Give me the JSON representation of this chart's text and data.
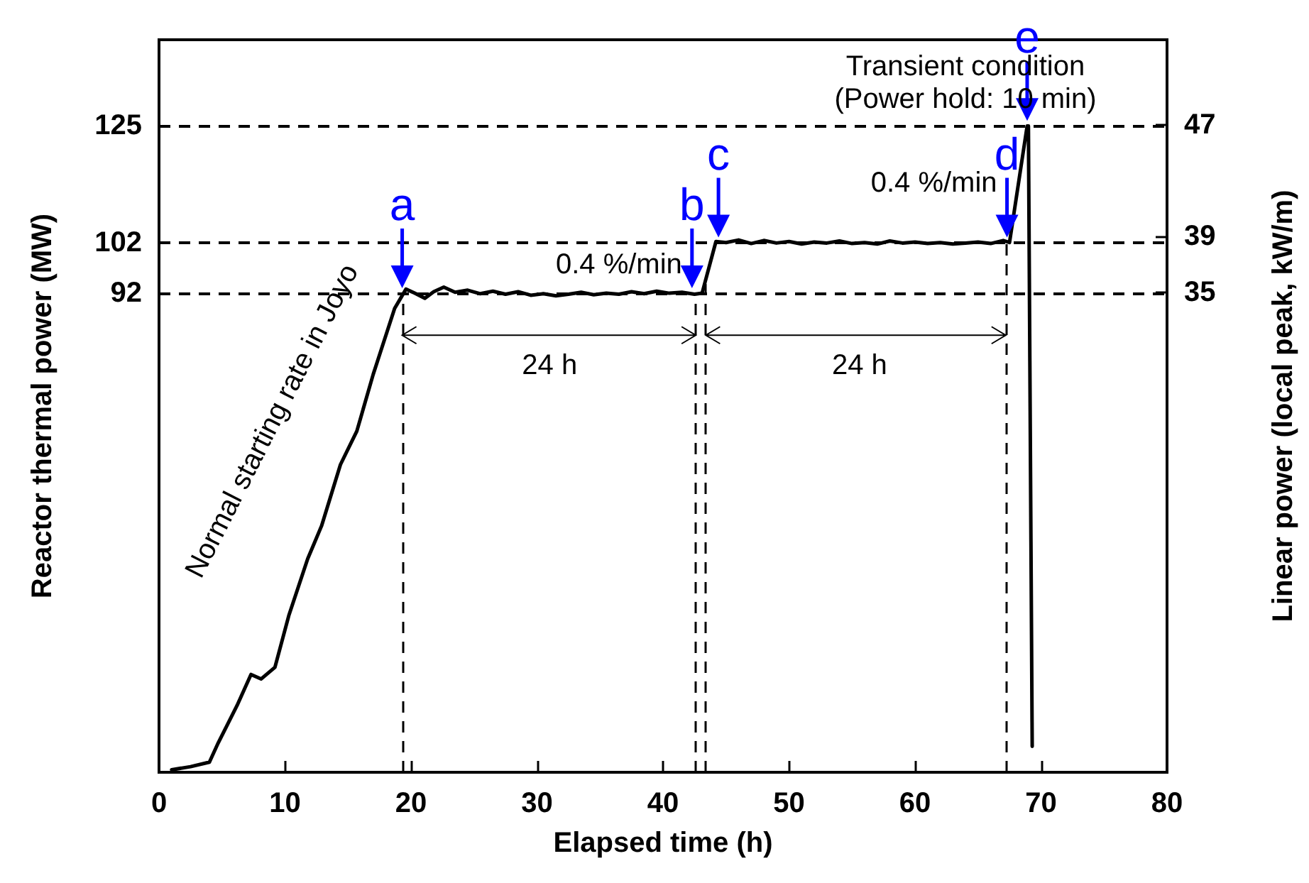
{
  "chart_data": {
    "type": "line",
    "xlabel": "Elapsed time (h)",
    "ylabel": "Reactor thermal power (MW)",
    "y2label": "Linear power (local peak, kW/m)",
    "xlim": [
      0,
      80
    ],
    "xticks": [
      0,
      10,
      20,
      30,
      40,
      50,
      60,
      70,
      80
    ],
    "ylim": [
      -2.5,
      142
    ],
    "yticks": [
      92,
      102,
      125
    ],
    "y2lim": [
      0.6,
      53.1
    ],
    "y2ticks": [
      35,
      39,
      47
    ],
    "grid": false,
    "marker": "none",
    "line_style": "solid",
    "series": [
      {
        "color": "#000000",
        "x": [
          1.0,
          2.5,
          4.0,
          4.7,
          6.2,
          7.3,
          8.1,
          9.2,
          10.3,
          11.8,
          12.9,
          14.4,
          15.7,
          17.0,
          18.7,
          19.6,
          20.3,
          21.1,
          21.8,
          22.6,
          23.5,
          24.5,
          25.5,
          26.5,
          27.5,
          28.5,
          29.5,
          30.5,
          31.5,
          32.5,
          33.5,
          34.5,
          35.5,
          36.5,
          37.5,
          38.5,
          39.5,
          40.5,
          41.5,
          42.5,
          43.1,
          44.2,
          45,
          46,
          47,
          48,
          49,
          50,
          51,
          52,
          53,
          54,
          55,
          56,
          57,
          58,
          59,
          60,
          61,
          62,
          63,
          64,
          65,
          66,
          67,
          67.5,
          68.9,
          69.0,
          69.3
        ],
        "values": [
          -2,
          -1.4,
          -0.5,
          3.3,
          10.7,
          16.8,
          15.9,
          18.2,
          28.4,
          39.6,
          46.1,
          58.2,
          64.8,
          76,
          89,
          92.8,
          92.0,
          91.0,
          92.3,
          93.2,
          92.2,
          92.6,
          91.9,
          92.4,
          91.8,
          92.3,
          91.6,
          91.9,
          91.5,
          91.8,
          92.2,
          91.7,
          92.0,
          91.8,
          92.3,
          91.9,
          92.4,
          92.0,
          92.2,
          91.8,
          92.0,
          102.2,
          102.0,
          102.5,
          101.8,
          102.4,
          101.9,
          102.2,
          101.7,
          102.1,
          101.9,
          102.3,
          101.8,
          102.0,
          101.7,
          102.3,
          101.9,
          102.1,
          101.8,
          102.0,
          101.7,
          101.9,
          102.1,
          101.8,
          102.4,
          102.0,
          125,
          125,
          2.6
        ]
      }
    ],
    "ref_lines": [
      {
        "axis": "y",
        "value": 92,
        "color": "#000000",
        "line_style": "dashed"
      },
      {
        "axis": "y",
        "value": 102,
        "color": "#000000",
        "line_style": "dashed"
      },
      {
        "axis": "y",
        "value": 125,
        "color": "#000000",
        "line_style": "dashed"
      },
      {
        "axis": "x",
        "value": 19.3,
        "color": "#000000",
        "line_style": "dashed"
      },
      {
        "axis": "x",
        "value": 42.6,
        "color": "#000000",
        "line_style": "dashed"
      },
      {
        "axis": "x",
        "value": 43.4,
        "color": "#000000",
        "line_style": "dashed"
      },
      {
        "axis": "x",
        "value": 67.2,
        "color": "#000000",
        "line_style": "dashed"
      }
    ],
    "annotations": [
      {
        "text": "a",
        "x": 19.3,
        "y": 93
      },
      {
        "text": "b",
        "x": 42.3,
        "y": 93
      },
      {
        "text": "c",
        "x": 44.4,
        "y": 103
      },
      {
        "text": "d",
        "x": 67.3,
        "y": 103
      },
      {
        "text": "e",
        "x": 68.9,
        "y": 126
      },
      "Normal starting rate in Joyo",
      "0.4 %/min",
      "0.4 %/min",
      "24 h",
      "24 h",
      "Transient condition\n(Power hold: 10 min)"
    ]
  }
}
